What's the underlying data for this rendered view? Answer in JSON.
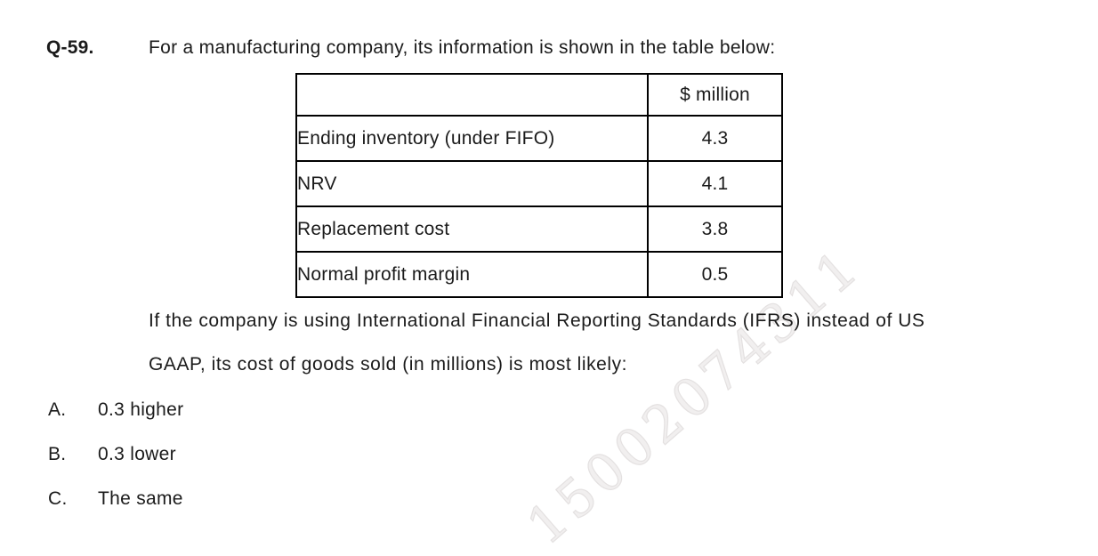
{
  "page": {
    "question_number": "Q-59.",
    "intro": "For a manufacturing company, its information is shown in the table below:",
    "body_line1": "If the company is using International Financial Reporting Standards (IFRS) instead of US",
    "body_line2": "GAAP, its cost of goods sold (in millions) is most likely:"
  },
  "table": {
    "unit_header": "$ million",
    "rows": [
      {
        "label": "Ending inventory (under FIFO)",
        "value": "4.3"
      },
      {
        "label": "NRV",
        "value": "4.1"
      },
      {
        "label": "Replacement cost",
        "value": "3.8"
      },
      {
        "label": "Normal profit margin",
        "value": "0.5"
      }
    ]
  },
  "options": [
    {
      "letter": "A.",
      "text": "0.3 higher"
    },
    {
      "letter": "B.",
      "text": "0.3 lower"
    },
    {
      "letter": "C.",
      "text": "The same"
    }
  ],
  "watermark": "15002074311",
  "colors": {
    "text": "#1b1b1b",
    "border": "#000000",
    "watermark": "#efecec"
  }
}
